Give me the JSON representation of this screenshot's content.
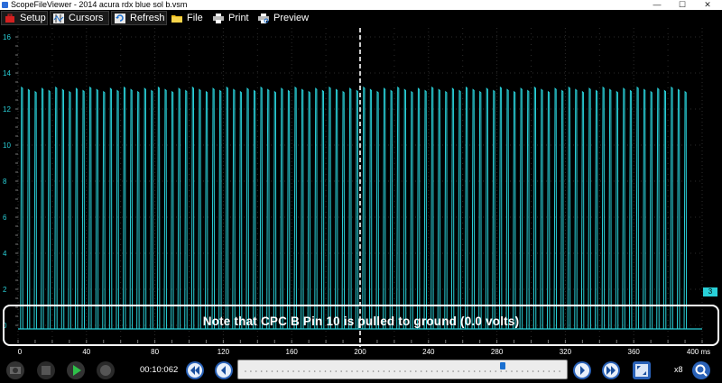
{
  "window": {
    "title": "ScopeFileViewer - 2014 acura rdx blue sol b.vsm",
    "minimize": "—",
    "maximize": "☐",
    "close": "✕"
  },
  "toolbar": {
    "setup": "Setup",
    "cursors": "Cursors",
    "refresh": "Refresh",
    "file": "File",
    "print": "Print",
    "preview": "Preview"
  },
  "chart_data": {
    "type": "line",
    "title": "",
    "xlabel": "",
    "ylabel": "",
    "ylim": [
      -1,
      16.5
    ],
    "xlim": [
      0,
      400
    ],
    "x_unit": "ms",
    "y_ticks": [
      "16",
      "14",
      "12",
      "10",
      "8",
      "6",
      "4",
      "2",
      "0",
      "-"
    ],
    "y_tick_values": [
      16,
      14,
      12,
      10,
      8,
      6,
      4,
      2,
      0,
      -0.8
    ],
    "x_ticks": [
      "0",
      "40",
      "80",
      "120",
      "160",
      "200",
      "240",
      "280",
      "320",
      "360",
      "400 ms"
    ],
    "x_tick_values": [
      0,
      40,
      80,
      120,
      160,
      200,
      240,
      280,
      320,
      360,
      400
    ],
    "grid": true,
    "series": [
      {
        "color": "#29d0d8",
        "baseline_volts": -0.2,
        "pulse_period_ms": 4.0,
        "first_pulse_ms": 2.0,
        "pulse_count": 98,
        "pulse_peak_volts": 13.2
      }
    ],
    "cursor_x_ms": 200
  },
  "annotation": {
    "text": "Note that CPC B Pin 10 is pulled to ground (0.0 volts)",
    "box_ylim": [
      -1.1,
      1.1
    ]
  },
  "channel": {
    "marker_label": "3",
    "color": "#29d0d8"
  },
  "controls": {
    "time_readout": "00:10:062",
    "zoom_label": "x8",
    "slider_position": 0.82
  },
  "icons": {
    "setup": "toolbox-icon",
    "cursors": "cursors-icon",
    "refresh": "refresh-icon",
    "file": "folder-icon",
    "print": "printer-icon",
    "preview": "print-preview-icon"
  }
}
